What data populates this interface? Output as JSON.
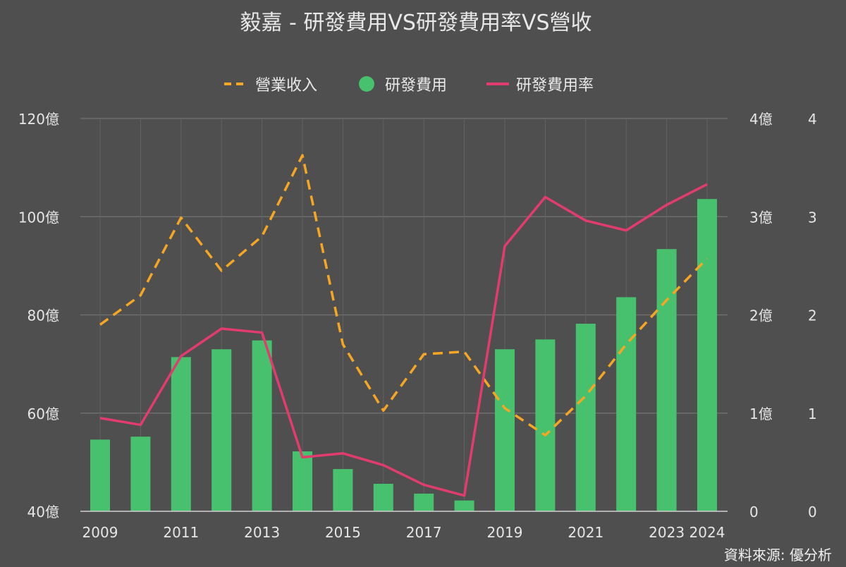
{
  "chart_data": {
    "type": "bar",
    "title": "毅嘉 - 研發費用VS研發費用率VS營收",
    "source": "資料來源: 優分析",
    "legend_position": "top-center",
    "grid": true,
    "x": [
      "2009",
      "2010",
      "2011",
      "2012",
      "2013",
      "2014",
      "2015",
      "2016",
      "2017",
      "2018",
      "2019",
      "2020",
      "2021",
      "2022",
      "2023",
      "2024"
    ],
    "x_tick_labels": [
      "2009",
      "",
      "2011",
      "",
      "2013",
      "",
      "2015",
      "",
      "2017",
      "",
      "2019",
      "",
      "2021",
      "",
      "2023",
      "2024"
    ],
    "axes": {
      "left": {
        "label": "",
        "range": [
          40,
          120
        ],
        "ticks": [
          40,
          60,
          80,
          100,
          120
        ],
        "tick_labels": [
          "40億",
          "60億",
          "80億",
          "100億",
          "120億"
        ]
      },
      "right1": {
        "label": "",
        "range": [
          0,
          4
        ],
        "ticks": [
          0,
          1,
          2,
          3,
          4
        ],
        "tick_labels": [
          "0",
          "1億",
          "2億",
          "3億",
          "4億"
        ]
      },
      "right2": {
        "label": "",
        "range": [
          0,
          4
        ],
        "ticks": [
          0,
          1,
          2,
          3,
          4
        ],
        "tick_labels": [
          "0",
          "1",
          "2",
          "3",
          "4"
        ]
      }
    },
    "series": [
      {
        "name": "營業收入",
        "type": "line",
        "style": "dashed",
        "color": "#f5a623",
        "axis": "left",
        "values": [
          78,
          84,
          99.8,
          89,
          96,
          112.5,
          74,
          60.5,
          72,
          72.5,
          61,
          55.5,
          63.5,
          74,
          83,
          91.5
        ]
      },
      {
        "name": "研發費用",
        "type": "bar",
        "color": "#47c16e",
        "axis": "right1",
        "values": [
          0.73,
          0.76,
          1.57,
          1.65,
          1.74,
          0.61,
          0.43,
          0.28,
          0.18,
          0.11,
          1.65,
          1.75,
          1.91,
          2.18,
          2.67,
          3.18
        ]
      },
      {
        "name": "研發費用率",
        "type": "line",
        "style": "solid",
        "color": "#e23c6e",
        "axis": "right2",
        "values": [
          0.95,
          0.88,
          1.58,
          1.86,
          1.82,
          0.55,
          0.59,
          0.47,
          0.27,
          0.16,
          2.7,
          3.2,
          2.96,
          2.86,
          3.12,
          3.33
        ]
      }
    ]
  }
}
